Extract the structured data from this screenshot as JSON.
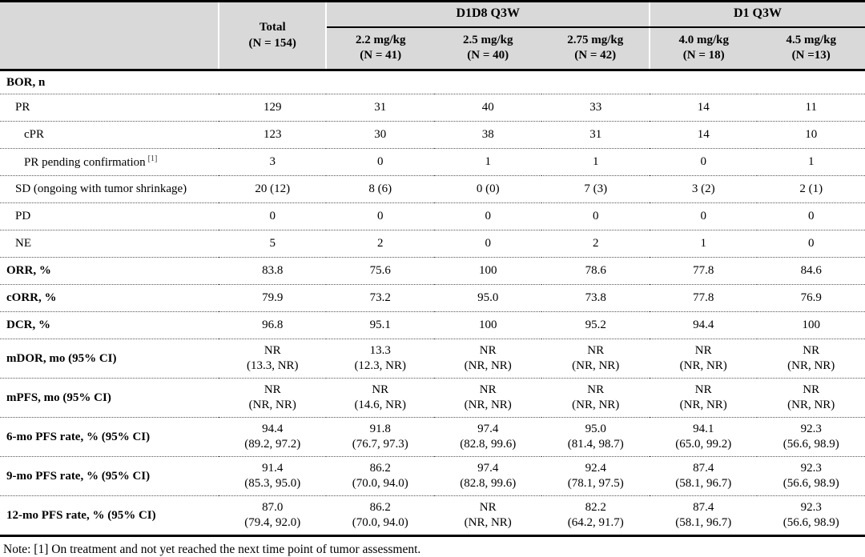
{
  "table": {
    "header": {
      "row_label_column": "",
      "total": "Total\n(N = 154)",
      "groups": [
        {
          "label": "D1D8 Q3W",
          "cols": [
            "2.2 mg/kg\n(N = 41)",
            "2.5 mg/kg\n(N = 40)",
            "2.75 mg/kg\n(N = 42)"
          ]
        },
        {
          "label": "D1 Q3W",
          "cols": [
            "4.0 mg/kg\n(N = 18)",
            "4.5 mg/kg\n(N =13)"
          ]
        }
      ]
    },
    "rows": [
      {
        "label": "BOR, n",
        "bold": true,
        "indent": 0,
        "section": true,
        "values": [
          "",
          "",
          "",
          "",
          "",
          ""
        ]
      },
      {
        "label": "PR",
        "bold": false,
        "indent": 1,
        "values": [
          "129",
          "31",
          "40",
          "33",
          "14",
          "11"
        ]
      },
      {
        "label": "cPR",
        "bold": false,
        "indent": 2,
        "values": [
          "123",
          "30",
          "38",
          "31",
          "14",
          "10"
        ]
      },
      {
        "label": "PR pending confirmation",
        "sup": "[1]",
        "bold": false,
        "indent": 2,
        "values": [
          "3",
          "0",
          "1",
          "1",
          "0",
          "1"
        ]
      },
      {
        "label": "SD (ongoing with tumor shrinkage)",
        "bold": false,
        "indent": 1,
        "values": [
          "20 (12)",
          "8 (6)",
          "0 (0)",
          "7 (3)",
          "3 (2)",
          "2 (1)"
        ]
      },
      {
        "label": "PD",
        "bold": false,
        "indent": 1,
        "values": [
          "0",
          "0",
          "0",
          "0",
          "0",
          "0"
        ]
      },
      {
        "label": "NE",
        "bold": false,
        "indent": 1,
        "values": [
          "5",
          "2",
          "0",
          "2",
          "1",
          "0"
        ]
      },
      {
        "label": "ORR, %",
        "bold": true,
        "indent": 0,
        "values": [
          "83.8",
          "75.6",
          "100",
          "78.6",
          "77.8",
          "84.6"
        ]
      },
      {
        "label": "cORR, %",
        "bold": true,
        "indent": 0,
        "values": [
          "79.9",
          "73.2",
          "95.0",
          "73.8",
          "77.8",
          "76.9"
        ]
      },
      {
        "label": "DCR, %",
        "bold": true,
        "indent": 0,
        "values": [
          "96.8",
          "95.1",
          "100",
          "95.2",
          "94.4",
          "100"
        ]
      },
      {
        "label": "mDOR, mo (95% CI)",
        "bold": true,
        "indent": 0,
        "values": [
          "NR\n(13.3, NR)",
          "13.3\n(12.3, NR)",
          "NR\n(NR, NR)",
          "NR\n(NR, NR)",
          "NR\n(NR, NR)",
          "NR\n(NR, NR)"
        ]
      },
      {
        "label": "mPFS, mo (95% CI)",
        "bold": true,
        "indent": 0,
        "values": [
          "NR\n(NR, NR)",
          "NR\n(14.6, NR)",
          "NR\n(NR, NR)",
          "NR\n(NR, NR)",
          "NR\n(NR, NR)",
          "NR\n(NR, NR)"
        ]
      },
      {
        "label": "6-mo PFS rate, % (95% CI)",
        "bold": true,
        "indent": 0,
        "values": [
          "94.4\n(89.2, 97.2)",
          "91.8\n(76.7, 97.3)",
          "97.4\n(82.8, 99.6)",
          "95.0\n(81.4, 98.7)",
          "94.1\n(65.0, 99.2)",
          "92.3\n(56.6, 98.9)"
        ]
      },
      {
        "label": "9-mo PFS rate, % (95% CI)",
        "bold": true,
        "indent": 0,
        "values": [
          "91.4\n(85.3, 95.0)",
          "86.2\n(70.0, 94.0)",
          "97.4\n(82.8, 99.6)",
          "92.4\n(78.1, 97.5)",
          "87.4\n(58.1, 96.7)",
          "92.3\n(56.6, 98.9)"
        ]
      },
      {
        "label": "12-mo PFS rate, % (95% CI)",
        "bold": true,
        "indent": 0,
        "values": [
          "87.0\n(79.4, 92.0)",
          "86.2\n(70.0, 94.0)",
          "NR\n(NR, NR)",
          "82.2\n(64.2, 91.7)",
          "87.4\n(58.1, 96.7)",
          "92.3\n(56.6, 98.9)"
        ]
      }
    ]
  },
  "note": "Note: [1] On treatment and not yet reached the next time point of tumor assessment.",
  "colors": {
    "header_bg": "#d9d9d9",
    "border": "#000000",
    "row_divider": "#555555"
  }
}
